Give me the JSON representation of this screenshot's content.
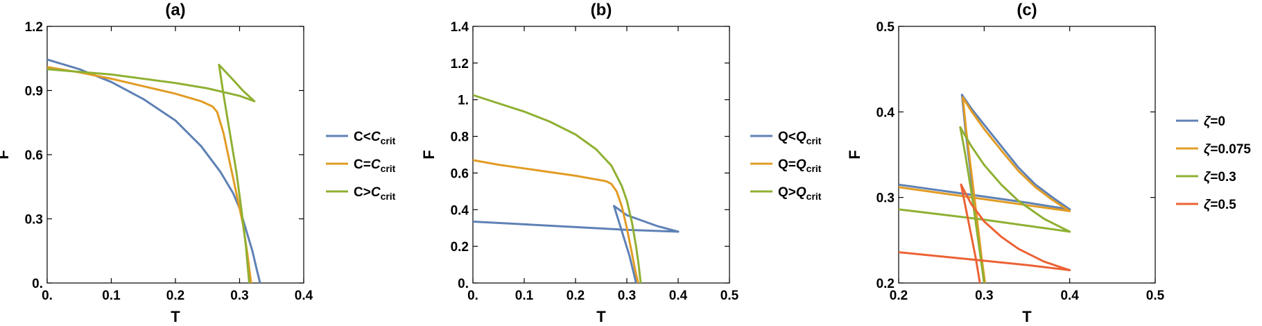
{
  "colors": {
    "blue": "#5e81b5",
    "orange": "#e19c24",
    "green": "#8fb032",
    "red": "#eb6235"
  },
  "chart_data": [
    {
      "type": "line",
      "title": "(a)",
      "xlabel": "T",
      "ylabel": "F",
      "xlim": [
        0,
        0.4
      ],
      "ylim": [
        0,
        1.2
      ],
      "xticks": [
        0,
        0.1,
        0.2,
        0.3,
        0.4
      ],
      "xtick_labels": [
        "0.",
        "0.1",
        "0.2",
        "0.3",
        "0.4"
      ],
      "yticks": [
        0,
        0.3,
        0.6,
        0.9,
        1.2
      ],
      "ytick_labels": [
        "0.",
        "0.3",
        "0.6",
        "0.9",
        "1.2"
      ],
      "grid": false,
      "legend": "right-outside",
      "series": [
        {
          "name": "C<C",
          "subscript": "crit",
          "color": "#5e81b5",
          "segments": [
            [
              [
                0,
                1.045
              ],
              [
                0.05,
                1.0
              ],
              [
                0.1,
                0.94
              ],
              [
                0.15,
                0.86
              ],
              [
                0.2,
                0.76
              ],
              [
                0.24,
                0.64
              ],
              [
                0.27,
                0.52
              ],
              [
                0.29,
                0.42
              ],
              [
                0.3,
                0.35
              ],
              [
                0.31,
                0.25
              ],
              [
                0.32,
                0.15
              ],
              [
                0.327,
                0.06
              ],
              [
                0.332,
                0.0
              ]
            ]
          ]
        },
        {
          "name": "C=C",
          "subscript": "crit",
          "color": "#e19c24",
          "segments": [
            [
              [
                0,
                1.01
              ],
              [
                0.05,
                0.985
              ],
              [
                0.1,
                0.955
              ],
              [
                0.15,
                0.92
              ],
              [
                0.2,
                0.885
              ],
              [
                0.24,
                0.85
              ],
              [
                0.258,
                0.825
              ],
              [
                0.265,
                0.8
              ],
              [
                0.275,
                0.7
              ],
              [
                0.285,
                0.56
              ],
              [
                0.295,
                0.42
              ],
              [
                0.305,
                0.28
              ],
              [
                0.312,
                0.14
              ],
              [
                0.318,
                0.0
              ]
            ]
          ]
        },
        {
          "name": "C>C",
          "subscript": "crit",
          "color": "#8fb032",
          "segments": [
            [
              [
                0,
                1.0
              ],
              [
                0.1,
                0.975
              ],
              [
                0.2,
                0.935
              ],
              [
                0.25,
                0.91
              ],
              [
                0.3,
                0.875
              ],
              [
                0.323,
                0.85
              ]
            ],
            [
              [
                0.323,
                0.85
              ],
              [
                0.305,
                0.9
              ],
              [
                0.29,
                0.95
              ],
              [
                0.268,
                1.02
              ]
            ],
            [
              [
                0.268,
                1.02
              ],
              [
                0.275,
                0.88
              ],
              [
                0.285,
                0.7
              ],
              [
                0.295,
                0.52
              ],
              [
                0.303,
                0.34
              ],
              [
                0.31,
                0.17
              ],
              [
                0.315,
                0.0
              ]
            ]
          ]
        }
      ]
    },
    {
      "type": "line",
      "title": "(b)",
      "xlabel": "T",
      "ylabel": "F",
      "xlim": [
        0,
        0.5
      ],
      "ylim": [
        0,
        1.4
      ],
      "xticks": [
        0,
        0.1,
        0.2,
        0.3,
        0.4,
        0.5
      ],
      "xtick_labels": [
        "0.",
        "0.1",
        "0.2",
        "0.3",
        "0.4",
        "0.5"
      ],
      "yticks": [
        0,
        0.2,
        0.4,
        0.6,
        0.8,
        1.0,
        1.2,
        1.4
      ],
      "ytick_labels": [
        "0.",
        "0.2",
        "0.4",
        "0.6",
        "0.8",
        "1.",
        "1.2",
        "1.4"
      ],
      "grid": false,
      "legend": "right-outside",
      "series": [
        {
          "name": "Q<Q",
          "subscript": "crit",
          "color": "#5e81b5",
          "segments": [
            [
              [
                0,
                0.335
              ],
              [
                0.1,
                0.32
              ],
              [
                0.2,
                0.305
              ],
              [
                0.3,
                0.29
              ],
              [
                0.4,
                0.28
              ]
            ],
            [
              [
                0.4,
                0.28
              ],
              [
                0.36,
                0.31
              ],
              [
                0.32,
                0.35
              ],
              [
                0.3,
                0.37
              ],
              [
                0.275,
                0.42
              ]
            ],
            [
              [
                0.275,
                0.42
              ],
              [
                0.285,
                0.33
              ],
              [
                0.295,
                0.24
              ],
              [
                0.305,
                0.15
              ],
              [
                0.312,
                0.07
              ],
              [
                0.318,
                0.0
              ]
            ]
          ]
        },
        {
          "name": "Q=Q",
          "subscript": "crit",
          "color": "#e19c24",
          "segments": [
            [
              [
                0,
                0.67
              ],
              [
                0.05,
                0.645
              ],
              [
                0.1,
                0.625
              ],
              [
                0.15,
                0.605
              ],
              [
                0.2,
                0.585
              ],
              [
                0.25,
                0.56
              ],
              [
                0.26,
                0.555
              ],
              [
                0.27,
                0.54
              ],
              [
                0.28,
                0.5
              ],
              [
                0.29,
                0.42
              ],
              [
                0.3,
                0.3
              ],
              [
                0.31,
                0.16
              ],
              [
                0.317,
                0.06
              ],
              [
                0.322,
                0.0
              ]
            ]
          ]
        },
        {
          "name": "Q>Q",
          "subscript": "crit",
          "color": "#8fb032",
          "segments": [
            [
              [
                0,
                1.025
              ],
              [
                0.05,
                0.98
              ],
              [
                0.1,
                0.935
              ],
              [
                0.15,
                0.88
              ],
              [
                0.2,
                0.81
              ],
              [
                0.24,
                0.73
              ],
              [
                0.27,
                0.64
              ],
              [
                0.29,
                0.53
              ],
              [
                0.3,
                0.45
              ],
              [
                0.31,
                0.33
              ],
              [
                0.318,
                0.2
              ],
              [
                0.323,
                0.1
              ],
              [
                0.327,
                0.0
              ]
            ]
          ]
        }
      ]
    },
    {
      "type": "line",
      "title": "(c)",
      "xlabel": "T",
      "ylabel": "F",
      "xlim": [
        0.2,
        0.5
      ],
      "ylim": [
        0.2,
        0.5
      ],
      "xticks": [
        0.2,
        0.3,
        0.4,
        0.5
      ],
      "xtick_labels": [
        "0.2",
        "0.3",
        "0.4",
        "0.5"
      ],
      "yticks": [
        0.2,
        0.3,
        0.4,
        0.5
      ],
      "ytick_labels": [
        "0.2",
        "0.3",
        "0.4",
        "0.5"
      ],
      "grid": false,
      "legend": "right-outside",
      "series": [
        {
          "name": "ζ=0",
          "color": "#5e81b5",
          "segments": [
            [
              [
                0.2,
                0.315
              ],
              [
                0.25,
                0.308
              ],
              [
                0.3,
                0.301
              ],
              [
                0.35,
                0.294
              ],
              [
                0.4,
                0.286
              ]
            ],
            [
              [
                0.4,
                0.286
              ],
              [
                0.38,
                0.3
              ],
              [
                0.36,
                0.315
              ],
              [
                0.34,
                0.335
              ],
              [
                0.32,
                0.36
              ],
              [
                0.3,
                0.385
              ],
              [
                0.285,
                0.404
              ],
              [
                0.274,
                0.42
              ]
            ],
            [
              [
                0.274,
                0.42
              ],
              [
                0.278,
                0.38
              ],
              [
                0.284,
                0.33
              ],
              [
                0.29,
                0.28
              ],
              [
                0.296,
                0.23
              ],
              [
                0.3,
                0.2
              ]
            ]
          ]
        },
        {
          "name": "ζ=0.075",
          "color": "#e19c24",
          "segments": [
            [
              [
                0.2,
                0.312
              ],
              [
                0.25,
                0.305
              ],
              [
                0.3,
                0.298
              ],
              [
                0.35,
                0.291
              ],
              [
                0.4,
                0.284
              ]
            ],
            [
              [
                0.4,
                0.284
              ],
              [
                0.38,
                0.297
              ],
              [
                0.36,
                0.312
              ],
              [
                0.34,
                0.331
              ],
              [
                0.32,
                0.355
              ],
              [
                0.3,
                0.38
              ],
              [
                0.285,
                0.401
              ],
              [
                0.275,
                0.417
              ]
            ],
            [
              [
                0.275,
                0.417
              ],
              [
                0.279,
                0.378
              ],
              [
                0.285,
                0.33
              ],
              [
                0.291,
                0.28
              ],
              [
                0.297,
                0.23
              ],
              [
                0.301,
                0.2
              ]
            ]
          ]
        },
        {
          "name": "ζ=0.3",
          "color": "#8fb032",
          "segments": [
            [
              [
                0.2,
                0.286
              ],
              [
                0.25,
                0.28
              ],
              [
                0.3,
                0.274
              ],
              [
                0.35,
                0.267
              ],
              [
                0.4,
                0.26
              ]
            ],
            [
              [
                0.4,
                0.26
              ],
              [
                0.37,
                0.275
              ],
              [
                0.34,
                0.296
              ],
              [
                0.32,
                0.315
              ],
              [
                0.3,
                0.338
              ],
              [
                0.285,
                0.36
              ],
              [
                0.272,
                0.382
              ]
            ],
            [
              [
                0.272,
                0.382
              ],
              [
                0.278,
                0.35
              ],
              [
                0.286,
                0.3
              ],
              [
                0.293,
                0.25
              ],
              [
                0.3,
                0.2
              ]
            ]
          ]
        },
        {
          "name": "ζ=0.5",
          "color": "#eb6235",
          "segments": [
            [
              [
                0.2,
                0.236
              ],
              [
                0.25,
                0.231
              ],
              [
                0.3,
                0.226
              ],
              [
                0.35,
                0.221
              ],
              [
                0.4,
                0.215
              ]
            ],
            [
              [
                0.4,
                0.215
              ],
              [
                0.37,
                0.225
              ],
              [
                0.34,
                0.24
              ],
              [
                0.32,
                0.254
              ],
              [
                0.3,
                0.272
              ],
              [
                0.285,
                0.292
              ],
              [
                0.273,
                0.315
              ]
            ],
            [
              [
                0.273,
                0.315
              ],
              [
                0.278,
                0.29
              ],
              [
                0.284,
                0.26
              ],
              [
                0.29,
                0.23
              ],
              [
                0.295,
                0.2
              ]
            ]
          ]
        }
      ]
    }
  ]
}
